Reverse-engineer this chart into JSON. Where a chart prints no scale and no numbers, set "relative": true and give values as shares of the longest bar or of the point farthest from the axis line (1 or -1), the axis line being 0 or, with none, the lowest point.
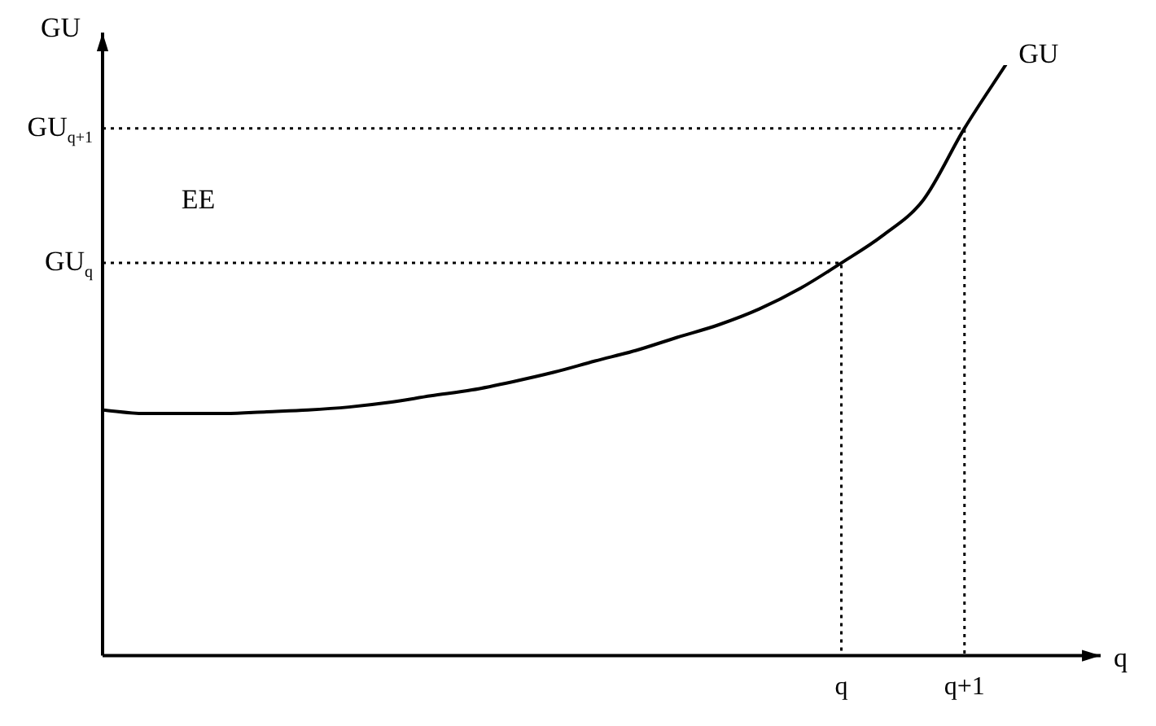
{
  "chart_data": {
    "type": "line",
    "relative": true,
    "xlabel": "q",
    "ylabel": "GU",
    "categories": [
      null,
      null,
      null,
      null,
      null,
      null,
      null,
      null,
      null,
      null,
      null,
      null,
      null,
      null,
      null,
      null,
      null,
      null,
      "q",
      null,
      null,
      "q+1",
      null,
      null,
      null
    ],
    "series": [
      {
        "name": "GU",
        "color": "#000000",
        "values": [
          0.416,
          0.41,
          0.41,
          0.41,
          0.413,
          0.416,
          0.421,
          0.429,
          0.44,
          0.45,
          0.464,
          0.48,
          0.499,
          0.517,
          0.539,
          0.56,
          0.587,
          0.622,
          0.665,
          0.711,
          0.772,
          0.893,
          1.0,
          null,
          null
        ]
      }
    ],
    "annotations": [
      "EE",
      "GU$_{q}$",
      "GU$_{q+1}$"
    ],
    "grid": false,
    "legend": false,
    "marker": "none",
    "line_style": "solid"
  }
}
